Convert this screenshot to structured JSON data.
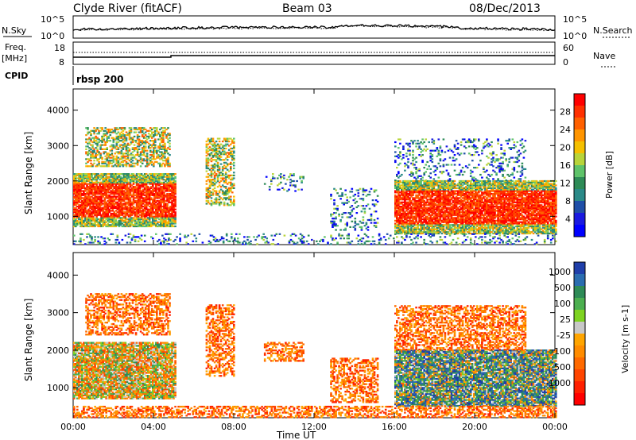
{
  "header": {
    "station": "Clyde River (fitACF)",
    "beam": "Beam 03",
    "date": "08/Dec/2013"
  },
  "noise_panel": {
    "left_label": "N.Sky",
    "left_ticks": [
      "10^5",
      "10^0"
    ],
    "right_ticks": [
      "10^5",
      "10^0"
    ],
    "right_label": "N.Search"
  },
  "freq_panel": {
    "left_label_1": "Freq.",
    "left_label_2": "[MHz]",
    "left_ticks": [
      "18",
      "8"
    ],
    "right_ticks": [
      "60",
      "0"
    ],
    "right_label": "Nave"
  },
  "cpid_panel": {
    "label": "CPID",
    "program": "rbsp 200"
  },
  "chart_data": [
    {
      "type": "heatmap",
      "name": "power",
      "ylabel": "Slant Range [km]",
      "yticks": [
        "4000",
        "3000",
        "2000",
        "1000"
      ],
      "ylim": [
        200,
        4600
      ],
      "xlabel": "Time UT",
      "xticks": [
        "00:00",
        "04:00",
        "08:00",
        "12:00",
        "16:00",
        "20:00",
        "00:00"
      ],
      "xlim_hours": [
        0,
        24
      ],
      "colorbar": {
        "label": "Power [dB]",
        "ticks": [
          "28",
          "24",
          "20",
          "16",
          "12",
          "8",
          "4"
        ],
        "colors": [
          "#ff0000",
          "#ff3000",
          "#ff6000",
          "#ff9500",
          "#f5c000",
          "#b8d43a",
          "#5fc36a",
          "#2e8b57",
          "#2b8a88",
          "#1f4fa8",
          "#1a1ae0",
          "#0000ff"
        ]
      },
      "regions": [
        {
          "t0": 0.0,
          "t1": 5.1,
          "r0": 700,
          "r1": 2200,
          "level": "high"
        },
        {
          "t0": 0.6,
          "t1": 4.8,
          "r0": 2400,
          "r1": 3500,
          "level": "mid"
        },
        {
          "t0": 6.6,
          "t1": 8.0,
          "r0": 1300,
          "r1": 3200,
          "level": "mid"
        },
        {
          "t0": 9.5,
          "t1": 11.5,
          "r0": 1700,
          "r1": 2200,
          "level": "low"
        },
        {
          "t0": 12.8,
          "t1": 15.2,
          "r0": 600,
          "r1": 1800,
          "level": "low"
        },
        {
          "t0": 16.0,
          "t1": 24.0,
          "r0": 500,
          "r1": 2000,
          "level": "high"
        },
        {
          "t0": 16.0,
          "t1": 22.5,
          "r0": 2000,
          "r1": 3200,
          "level": "low"
        },
        {
          "t0": 0.0,
          "t1": 24.0,
          "r0": 200,
          "r1": 500,
          "level": "low"
        }
      ]
    },
    {
      "type": "heatmap",
      "name": "velocity",
      "ylabel": "Slant Range [km]",
      "yticks": [
        "4000",
        "3000",
        "2000",
        "1000"
      ],
      "ylim": [
        200,
        4600
      ],
      "xlabel": "Time UT",
      "xticks": [
        "00:00",
        "04:00",
        "08:00",
        "12:00",
        "16:00",
        "20:00",
        "00:00"
      ],
      "xlim_hours": [
        0,
        24
      ],
      "colorbar": {
        "label": "Velocity [m s-1]",
        "ticks": [
          "1000",
          "500",
          "100",
          "25",
          "-25",
          "-100",
          "-500",
          "-1000"
        ],
        "colors": [
          "#1f3faa",
          "#2a6db0",
          "#2e8b57",
          "#4caf50",
          "#7ed321",
          "#c8c8c8",
          "#ffa500",
          "#ff8c00",
          "#ff6a00",
          "#ff4500",
          "#ff2000",
          "#ff0000"
        ]
      },
      "regions": [
        {
          "t0": 0.0,
          "t1": 5.1,
          "r0": 700,
          "r1": 2200,
          "level": "mixed-neg"
        },
        {
          "t0": 0.6,
          "t1": 4.8,
          "r0": 2400,
          "r1": 3500,
          "level": "neg"
        },
        {
          "t0": 6.6,
          "t1": 8.0,
          "r0": 1300,
          "r1": 3200,
          "level": "neg"
        },
        {
          "t0": 9.5,
          "t1": 11.5,
          "r0": 1700,
          "r1": 2200,
          "level": "neg"
        },
        {
          "t0": 12.8,
          "t1": 15.2,
          "r0": 600,
          "r1": 1800,
          "level": "neg"
        },
        {
          "t0": 16.0,
          "t1": 24.0,
          "r0": 500,
          "r1": 2000,
          "level": "mixed-pos"
        },
        {
          "t0": 16.0,
          "t1": 22.5,
          "r0": 2000,
          "r1": 3200,
          "level": "neg"
        },
        {
          "t0": 0.0,
          "t1": 24.0,
          "r0": 200,
          "r1": 500,
          "level": "neg"
        }
      ]
    }
  ]
}
